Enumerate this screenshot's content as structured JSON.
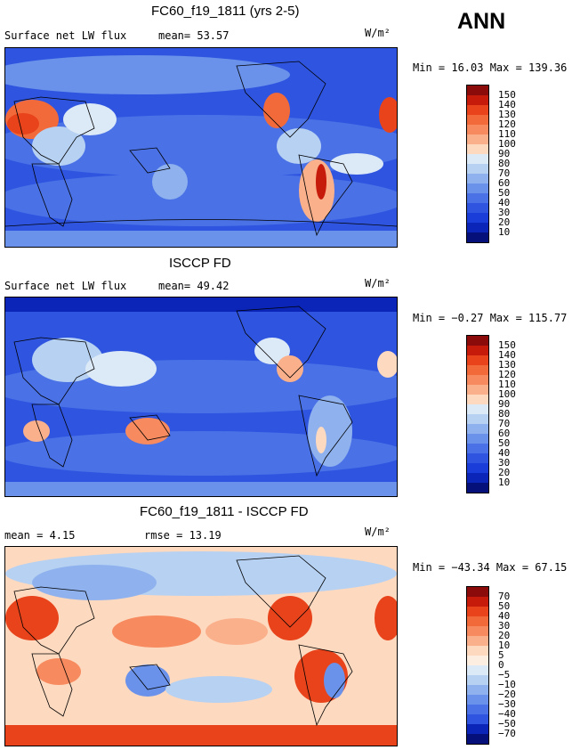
{
  "season": "ANN",
  "panels": [
    {
      "title": "FC60_f19_1811 (yrs 2-5)",
      "left_text": "Surface net LW flux",
      "stat": "mean=  53.57",
      "units": "W/m²",
      "minmax": "Min =  16.03 Max = 139.36",
      "levels": [
        "150",
        "140",
        "130",
        "120",
        "110",
        "100",
        "90",
        "80",
        "70",
        "60",
        "50",
        "40",
        "30",
        "20",
        "10"
      ],
      "colors": [
        "#8b0a0a",
        "#c61a0a",
        "#e8431a",
        "#f26a3a",
        "#f78a5e",
        "#fbb08c",
        "#fdd9bf",
        "#dce9f7",
        "#b6d1f2",
        "#8fb2ee",
        "#6a92ea",
        "#4a72e6",
        "#2f55e0",
        "#1a3cd8",
        "#0a25b8",
        "#06107a"
      ]
    },
    {
      "title": "ISCCP FD",
      "left_text": "Surface net LW flux",
      "stat": "mean=  49.42",
      "units": "W/m²",
      "minmax": "Min = −0.27 Max = 115.77",
      "levels": [
        "150",
        "140",
        "130",
        "120",
        "110",
        "100",
        "90",
        "80",
        "70",
        "60",
        "50",
        "40",
        "30",
        "20",
        "10"
      ],
      "colors": [
        "#8b0a0a",
        "#c61a0a",
        "#e8431a",
        "#f26a3a",
        "#f78a5e",
        "#fbb08c",
        "#fdd9bf",
        "#dce9f7",
        "#b6d1f2",
        "#8fb2ee",
        "#6a92ea",
        "#4a72e6",
        "#2f55e0",
        "#1a3cd8",
        "#0a25b8",
        "#06107a"
      ]
    },
    {
      "title": "FC60_f19_1811 - ISCCP FD",
      "left_text": "mean =   4.15",
      "stat": "rmse =  13.19",
      "units": "W/m²",
      "minmax": "Min = −43.34 Max =  67.15",
      "levels": [
        "70",
        "50",
        "40",
        "30",
        "20",
        "10",
        "5",
        "0",
        "−5",
        "−10",
        "−20",
        "−30",
        "−40",
        "−50",
        "−70"
      ],
      "colors": [
        "#8b0a0a",
        "#c61a0a",
        "#e8431a",
        "#f26a3a",
        "#f78a5e",
        "#fbb08c",
        "#fdd9bf",
        "#fdeee2",
        "#dce9f7",
        "#b6d1f2",
        "#8fb2ee",
        "#6a92ea",
        "#4a72e6",
        "#2f55e0",
        "#0a25b8",
        "#06107a"
      ]
    }
  ]
}
